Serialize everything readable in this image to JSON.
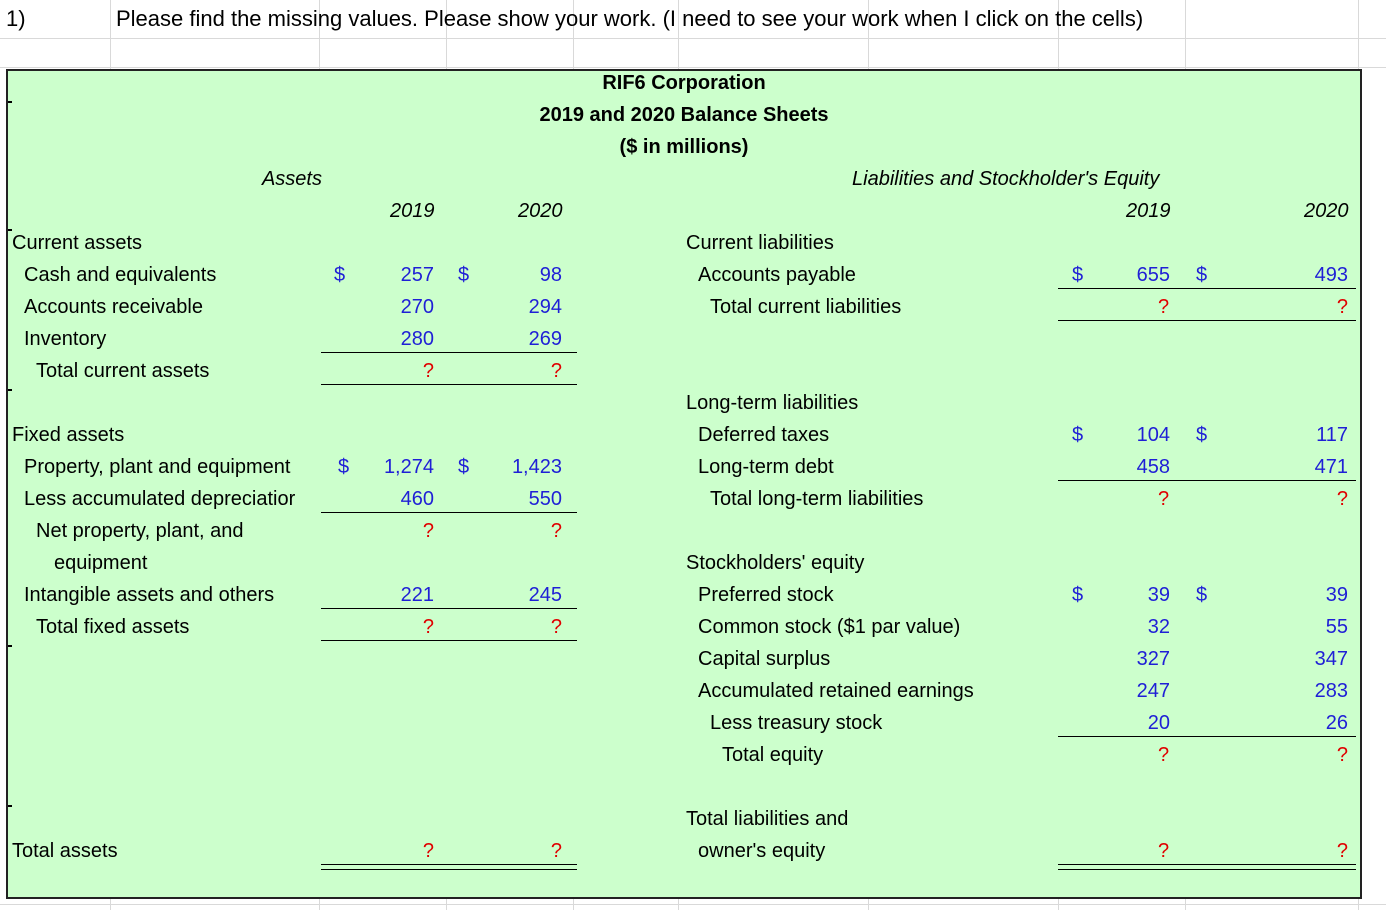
{
  "row_number": "1)",
  "instructions": "Please find the missing values. Please show your work. (I need to see your work when I click on the cells)",
  "header": {
    "company": "RIF6 Corporation",
    "subtitle": "2019 and 2020 Balance Sheets",
    "units": "($ in millions)"
  },
  "assets": {
    "heading": "Assets",
    "year1": "2019",
    "year2": "2020",
    "current_heading": "Current assets",
    "cash": {
      "label": "Cash and equivalents",
      "cur": "$",
      "v2019": "257",
      "v2020": "98"
    },
    "ar": {
      "label": "Accounts receivable",
      "v2019": "270",
      "v2020": "294"
    },
    "inventory": {
      "label": "Inventory",
      "v2019": "280",
      "v2020": "269"
    },
    "total_current": {
      "label": "Total current assets",
      "v2019": "?",
      "v2020": "?"
    },
    "fixed_heading": "Fixed assets",
    "ppe": {
      "label": "Property, plant and equipment",
      "cur": "$",
      "v2019": "1,274",
      "v2020": "1,423"
    },
    "depr": {
      "label": "Less accumulated depreciatior",
      "v2019": "460",
      "v2020": "550"
    },
    "net_ppe": {
      "label_line1": "Net property, plant, and",
      "label_line2": "equipment",
      "v2019": "?",
      "v2020": "?"
    },
    "intangible": {
      "label": "Intangible assets and others",
      "v2019": "221",
      "v2020": "245"
    },
    "total_fixed": {
      "label": "Total fixed assets",
      "v2019": "?",
      "v2020": "?"
    },
    "total_assets": {
      "label": "Total assets",
      "v2019": "?",
      "v2020": "?"
    }
  },
  "liabilities": {
    "heading": "Liabilities and Stockholder's Equity",
    "year1": "2019",
    "year2": "2020",
    "current_heading": "Current liabilities",
    "ap": {
      "label": "Accounts payable",
      "cur": "$",
      "v2019": "655",
      "v2020": "493"
    },
    "total_current": {
      "label": "Total current liabilities",
      "v2019": "?",
      "v2020": "?"
    },
    "lt_heading": "Long-term liabilities",
    "deferred": {
      "label": "Deferred taxes",
      "cur": "$",
      "v2019": "104",
      "v2020": "117"
    },
    "ltdebt": {
      "label": "Long-term debt",
      "v2019": "458",
      "v2020": "471"
    },
    "total_lt": {
      "label": "Total long-term liabilities",
      "v2019": "?",
      "v2020": "?"
    },
    "se_heading": "Stockholders' equity",
    "preferred": {
      "label": "Preferred stock",
      "cur": "$",
      "v2019": "39",
      "v2020": "39"
    },
    "common": {
      "label": "Common stock ($1 par value)",
      "v2019": "32",
      "v2020": "55"
    },
    "surplus": {
      "label": "Capital surplus",
      "v2019": "327",
      "v2020": "347"
    },
    "retained": {
      "label": "Accumulated retained earnings",
      "v2019": "247",
      "v2020": "283"
    },
    "treasury": {
      "label": "Less treasury stock",
      "v2019": "20",
      "v2020": "26"
    },
    "total_equity": {
      "label": "Total equity",
      "v2019": "?",
      "v2020": "?"
    },
    "total_le": {
      "label_line1": "Total liabilities and",
      "label_line2": "owner's equity",
      "v2019": "?",
      "v2020": "?"
    }
  }
}
